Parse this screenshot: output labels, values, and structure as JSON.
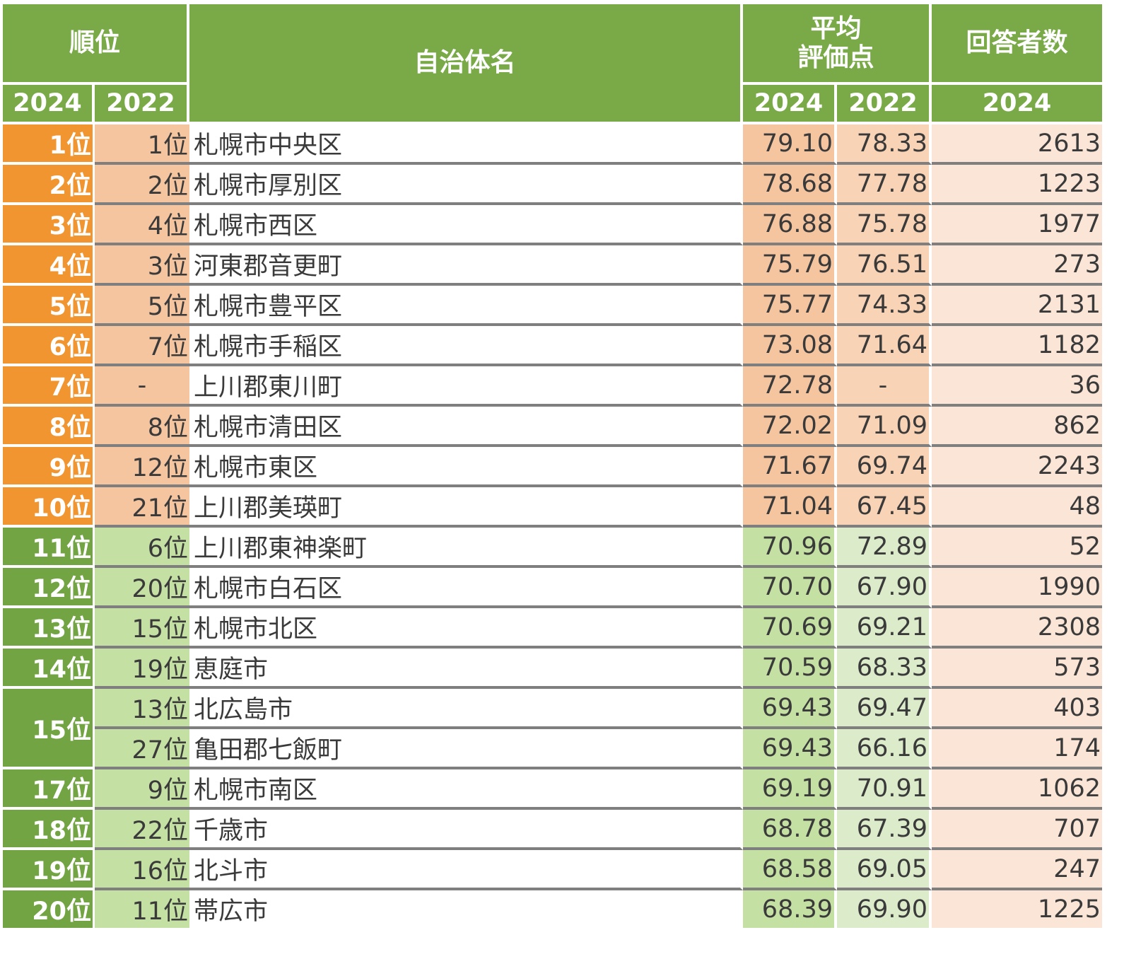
{
  "header": {
    "rank": "順位",
    "name": "自治体名",
    "score": "平均\n評価点",
    "respondents": "回答者数",
    "y2024": "2024",
    "y2022": "2022"
  },
  "colors": {
    "header_green": "#7aaa48",
    "rank_orange": "#f0952f",
    "rank_green": "#72a443",
    "top_fill": "#f5c5a0",
    "mid_fill": "#c4e0a3",
    "respondent_fill": "#fbe5d6"
  },
  "chart_data": {
    "type": "table",
    "columns": [
      "順位 2024",
      "順位 2022",
      "自治体名",
      "平均評価点 2024",
      "平均評価点 2022",
      "回答者数 2024"
    ],
    "rows": [
      {
        "rank2024": "1位",
        "rank2022": "1位",
        "name": "札幌市中央区",
        "score2024": "79.10",
        "score2022": "78.33",
        "respondents": "2613"
      },
      {
        "rank2024": "2位",
        "rank2022": "2位",
        "name": "札幌市厚別区",
        "score2024": "78.68",
        "score2022": "77.78",
        "respondents": "1223"
      },
      {
        "rank2024": "3位",
        "rank2022": "4位",
        "name": "札幌市西区",
        "score2024": "76.88",
        "score2022": "75.78",
        "respondents": "1977"
      },
      {
        "rank2024": "4位",
        "rank2022": "3位",
        "name": "河東郡音更町",
        "score2024": "75.79",
        "score2022": "76.51",
        "respondents": "273"
      },
      {
        "rank2024": "5位",
        "rank2022": "5位",
        "name": "札幌市豊平区",
        "score2024": "75.77",
        "score2022": "74.33",
        "respondents": "2131"
      },
      {
        "rank2024": "6位",
        "rank2022": "7位",
        "name": "札幌市手稲区",
        "score2024": "73.08",
        "score2022": "71.64",
        "respondents": "1182"
      },
      {
        "rank2024": "7位",
        "rank2022": "-",
        "name": "上川郡東川町",
        "score2024": "72.78",
        "score2022": "-",
        "respondents": "36"
      },
      {
        "rank2024": "8位",
        "rank2022": "8位",
        "name": "札幌市清田区",
        "score2024": "72.02",
        "score2022": "71.09",
        "respondents": "862"
      },
      {
        "rank2024": "9位",
        "rank2022": "12位",
        "name": "札幌市東区",
        "score2024": "71.67",
        "score2022": "69.74",
        "respondents": "2243"
      },
      {
        "rank2024": "10位",
        "rank2022": "21位",
        "name": "上川郡美瑛町",
        "score2024": "71.04",
        "score2022": "67.45",
        "respondents": "48"
      },
      {
        "rank2024": "11位",
        "rank2022": "6位",
        "name": "上川郡東神楽町",
        "score2024": "70.96",
        "score2022": "72.89",
        "respondents": "52"
      },
      {
        "rank2024": "12位",
        "rank2022": "20位",
        "name": "札幌市白石区",
        "score2024": "70.70",
        "score2022": "67.90",
        "respondents": "1990"
      },
      {
        "rank2024": "13位",
        "rank2022": "15位",
        "name": "札幌市北区",
        "score2024": "70.69",
        "score2022": "69.21",
        "respondents": "2308"
      },
      {
        "rank2024": "14位",
        "rank2022": "19位",
        "name": "恵庭市",
        "score2024": "70.59",
        "score2022": "68.33",
        "respondents": "573"
      },
      {
        "rank2024": "15位",
        "rank2022": "13位",
        "name": "北広島市",
        "score2024": "69.43",
        "score2022": "69.47",
        "respondents": "403"
      },
      {
        "rank2024": "15位",
        "rank2022": "27位",
        "name": "亀田郡七飯町",
        "score2024": "69.43",
        "score2022": "66.16",
        "respondents": "174"
      },
      {
        "rank2024": "17位",
        "rank2022": "9位",
        "name": "札幌市南区",
        "score2024": "69.19",
        "score2022": "70.91",
        "respondents": "1062"
      },
      {
        "rank2024": "18位",
        "rank2022": "22位",
        "name": "千歳市",
        "score2024": "68.78",
        "score2022": "67.39",
        "respondents": "707"
      },
      {
        "rank2024": "19位",
        "rank2022": "16位",
        "name": "北斗市",
        "score2024": "68.58",
        "score2022": "69.05",
        "respondents": "247"
      },
      {
        "rank2024": "20位",
        "rank2022": "11位",
        "name": "帯広市",
        "score2024": "68.39",
        "score2022": "69.90",
        "respondents": "1225"
      }
    ]
  }
}
